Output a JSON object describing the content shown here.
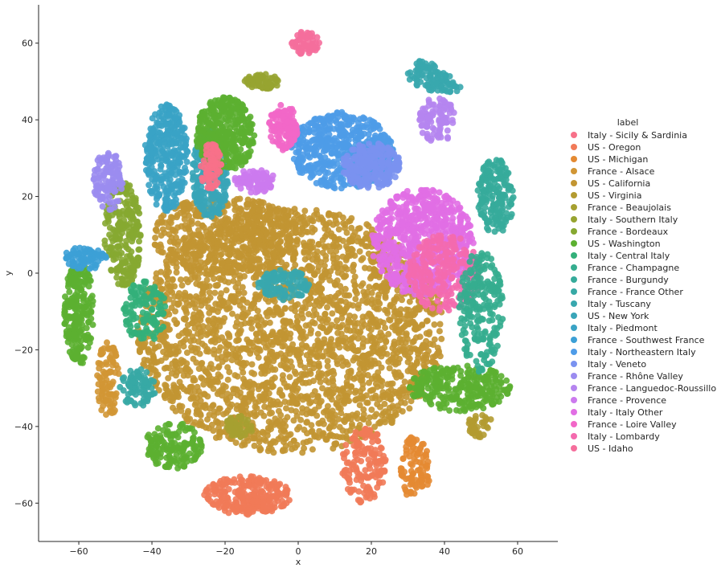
{
  "chart_data": {
    "type": "scatter",
    "xlabel": "x",
    "ylabel": "y",
    "xlim": [
      -71,
      71
    ],
    "ylim": [
      -70,
      70
    ],
    "xticks": [
      -60,
      -40,
      -20,
      0,
      20,
      40,
      60
    ],
    "yticks": [
      -60,
      -40,
      -20,
      0,
      20,
      40,
      60
    ],
    "grid": false,
    "legend": {
      "title": "label",
      "placement": "right",
      "entries": [
        {
          "name": "Italy - Sicily & Sardinia",
          "color": "#f77189"
        },
        {
          "name": "US - Oregon",
          "color": "#f17a58"
        },
        {
          "name": "US - Michigan",
          "color": "#e48a32"
        },
        {
          "name": "France - Alsace",
          "color": "#d19634"
        },
        {
          "name": "US - California",
          "color": "#c29532"
        },
        {
          "name": "US - Virginia",
          "color": "#b39b31"
        },
        {
          "name": "France - Beaujolais",
          "color": "#a6a031"
        },
        {
          "name": "Italy - Southern Italy",
          "color": "#97a431"
        },
        {
          "name": "France - Bordeaux",
          "color": "#86a831"
        },
        {
          "name": "US - Washington",
          "color": "#5cb031"
        },
        {
          "name": "Italy - Central Italy",
          "color": "#33b07a"
        },
        {
          "name": "France - Champagne",
          "color": "#35ad8f"
        },
        {
          "name": "France - Burgundy",
          "color": "#36ab9b"
        },
        {
          "name": "France - France Other",
          "color": "#37a9a5"
        },
        {
          "name": "Italy - Tuscany",
          "color": "#38a7ae"
        },
        {
          "name": "US - New York",
          "color": "#39a5b8"
        },
        {
          "name": "Italy - Piedmont",
          "color": "#3aa3c5"
        },
        {
          "name": "France - Southwest France",
          "color": "#3ca0d6"
        },
        {
          "name": "Italy - Northeastern Italy",
          "color": "#4e9ce8"
        },
        {
          "name": "Italy - Veneto",
          "color": "#7a92f0"
        },
        {
          "name": "France - Rhône Valley",
          "color": "#9b8cf0"
        },
        {
          "name": "France - Languedoc-Roussillon",
          "color": "#b585ef"
        },
        {
          "name": "France - Provence",
          "color": "#cc7aee"
        },
        {
          "name": "Italy - Italy Other",
          "color": "#e16ee4"
        },
        {
          "name": "France - Loire Valley",
          "color": "#f267c8"
        },
        {
          "name": "Italy - Lombardy",
          "color": "#f46aae"
        },
        {
          "name": "US - Idaho",
          "color": "#f56e9c"
        }
      ]
    },
    "clusters": [
      {
        "series": "US - California",
        "cx": -2,
        "cy": -15,
        "rx": 42,
        "ry": 32,
        "n": 2600
      },
      {
        "series": "US - California",
        "cx": -20,
        "cy": 10,
        "rx": 20,
        "ry": 10,
        "n": 500
      },
      {
        "series": "Italy - Italy Other",
        "cx": 34,
        "cy": 8,
        "rx": 14,
        "ry": 14,
        "n": 700
      },
      {
        "series": "Italy - Lombardy",
        "cx": 40,
        "cy": 0,
        "rx": 10,
        "ry": 10,
        "n": 250
      },
      {
        "series": "Italy - Northeastern Italy",
        "cx": 12,
        "cy": 32,
        "rx": 14,
        "ry": 10,
        "n": 500
      },
      {
        "series": "Italy - Veneto",
        "cx": 20,
        "cy": 28,
        "rx": 8,
        "ry": 6,
        "n": 250
      },
      {
        "series": "Italy - Piedmont",
        "cx": -36,
        "cy": 30,
        "rx": 6,
        "ry": 14,
        "n": 320
      },
      {
        "series": "US - New York",
        "cx": -24,
        "cy": 26,
        "rx": 5,
        "ry": 12,
        "n": 250
      },
      {
        "series": "US - Washington",
        "cx": -20,
        "cy": 36,
        "rx": 8,
        "ry": 10,
        "n": 380
      },
      {
        "series": "US - Washington",
        "cx": -60,
        "cy": -10,
        "rx": 4,
        "ry": 14,
        "n": 230
      },
      {
        "series": "US - Washington",
        "cx": 44,
        "cy": -30,
        "rx": 14,
        "ry": 6,
        "n": 280
      },
      {
        "series": "US - Washington",
        "cx": -34,
        "cy": -45,
        "rx": 8,
        "ry": 6,
        "n": 160
      },
      {
        "series": "US - Oregon",
        "cx": -14,
        "cy": -58,
        "rx": 12,
        "ry": 5,
        "n": 260
      },
      {
        "series": "US - Oregon",
        "cx": 18,
        "cy": -50,
        "rx": 6,
        "ry": 10,
        "n": 150
      },
      {
        "series": "France - Bordeaux",
        "cx": -48,
        "cy": 10,
        "rx": 5,
        "ry": 14,
        "n": 230
      },
      {
        "series": "France - Champagne",
        "cx": 50,
        "cy": -10,
        "rx": 6,
        "ry": 16,
        "n": 220
      },
      {
        "series": "France - Burgundy",
        "cx": 54,
        "cy": 20,
        "rx": 5,
        "ry": 10,
        "n": 180
      },
      {
        "series": "Italy - Tuscany",
        "cx": 40,
        "cy": 52,
        "rx": 10,
        "ry": 5,
        "n": 180
      },
      {
        "series": "Italy - Tuscany",
        "cx": -4,
        "cy": -3,
        "rx": 7,
        "ry": 4,
        "n": 120
      },
      {
        "series": "France - Loire Valley",
        "cx": -4,
        "cy": 38,
        "rx": 4,
        "ry": 6,
        "n": 120
      },
      {
        "series": "France - Rhône Valley",
        "cx": -52,
        "cy": 24,
        "rx": 4,
        "ry": 8,
        "n": 120
      },
      {
        "series": "France - Languedoc-Roussillon",
        "cx": 38,
        "cy": 40,
        "rx": 5,
        "ry": 6,
        "n": 100
      },
      {
        "series": "US - Michigan",
        "cx": 32,
        "cy": -52,
        "rx": 4,
        "ry": 10,
        "n": 110
      },
      {
        "series": "Italy - Sicily & Sardinia",
        "cx": -24,
        "cy": 28,
        "rx": 3,
        "ry": 6,
        "n": 80
      },
      {
        "series": "France - Alsace",
        "cx": -52,
        "cy": -28,
        "rx": 3,
        "ry": 10,
        "n": 90
      },
      {
        "series": "Italy - Central Italy",
        "cx": -42,
        "cy": -10,
        "rx": 6,
        "ry": 8,
        "n": 120
      },
      {
        "series": "France - France Other",
        "cx": -44,
        "cy": -30,
        "rx": 5,
        "ry": 5,
        "n": 90
      },
      {
        "series": "France - Southwest France",
        "cx": -58,
        "cy": 4,
        "rx": 6,
        "ry": 3,
        "n": 80
      },
      {
        "series": "Italy - Southern Italy",
        "cx": -10,
        "cy": 50,
        "rx": 5,
        "ry": 2,
        "n": 70
      },
      {
        "series": "France - Provence",
        "cx": -12,
        "cy": 24,
        "rx": 6,
        "ry": 3,
        "n": 90
      },
      {
        "series": "US - Idaho",
        "cx": 2,
        "cy": 60,
        "rx": 4,
        "ry": 3,
        "n": 60
      },
      {
        "series": "France - Beaujolais",
        "cx": -16,
        "cy": -40,
        "rx": 4,
        "ry": 3,
        "n": 50
      },
      {
        "series": "US - Virginia",
        "cx": 50,
        "cy": -40,
        "rx": 4,
        "ry": 3,
        "n": 50
      }
    ]
  }
}
